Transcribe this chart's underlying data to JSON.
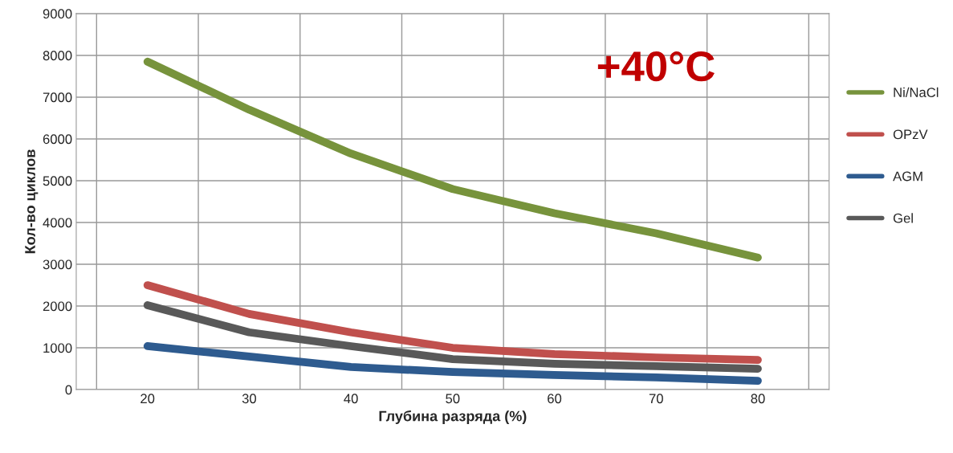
{
  "chart_data": {
    "type": "line",
    "xlabel": "Глубина разряда (%)",
    "ylabel": "Кол-во циклов",
    "categories": [
      "20",
      "30",
      "40",
      "50",
      "60",
      "70",
      "80"
    ],
    "series": [
      {
        "name": "Ni/NaCl",
        "color": "#77933c",
        "values": [
          7850,
          6700,
          5650,
          4800,
          4220,
          3740,
          3160
        ]
      },
      {
        "name": "OPzV",
        "color": "#c0504d",
        "values": [
          2500,
          1810,
          1370,
          1000,
          850,
          770,
          710
        ]
      },
      {
        "name": "AGM",
        "color": "#2e5b8f",
        "values": [
          1040,
          790,
          540,
          420,
          350,
          290,
          210
        ]
      },
      {
        "name": "Gel",
        "color": "#595959",
        "values": [
          2020,
          1370,
          1040,
          730,
          620,
          560,
          500
        ]
      }
    ],
    "ylim": [
      0,
      9000
    ],
    "yticks": [
      0,
      1000,
      2000,
      3000,
      4000,
      5000,
      6000,
      7000,
      8000,
      9000
    ],
    "grid": true,
    "legend": "right",
    "marker": "none",
    "line_style": "solid",
    "annotations": [
      "+40°C"
    ]
  }
}
